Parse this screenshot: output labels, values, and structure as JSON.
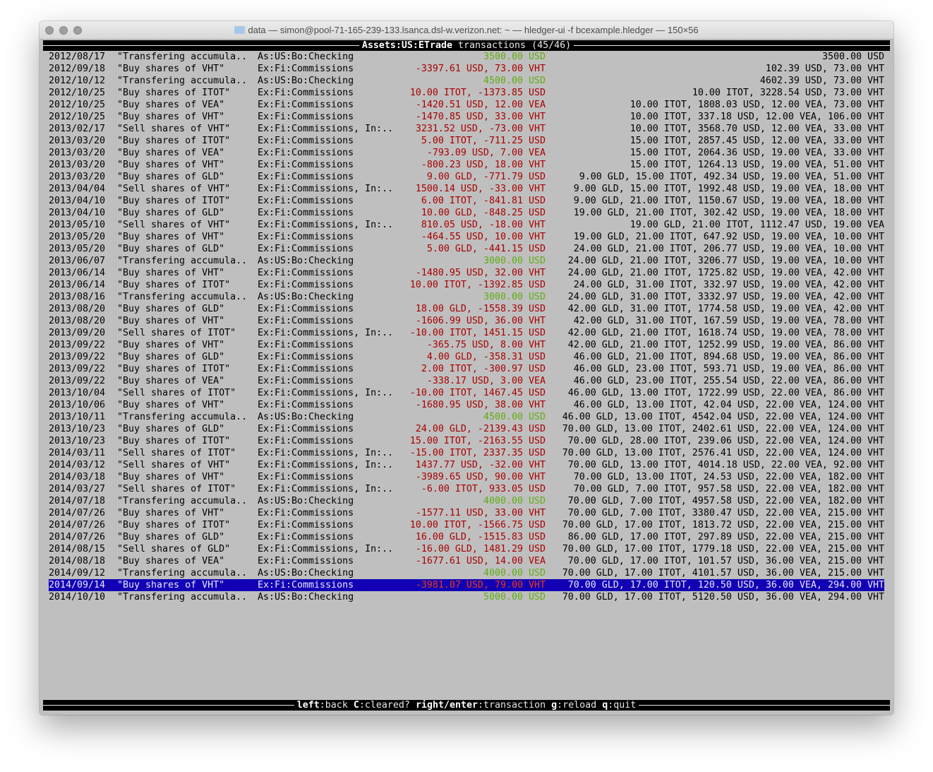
{
  "window": {
    "title": "data — simon@pool-71-165-239-133.lsanca.dsl-w.verizon.net: ~ — hledger-ui -f bcexample.hledger — 150×56"
  },
  "header": {
    "account": "Assets:US:ETrade",
    "label": "transactions",
    "count": "(45/46)"
  },
  "colors": {
    "negative": "#a80000",
    "positive": "#5fae12",
    "selection": "#1200b4"
  },
  "selected_index": 44,
  "rows": [
    {
      "date": "2012/08/17",
      "desc": "\"Transfering accumula..",
      "acct": "As:US:Bo:Checking",
      "change": "3500.00 USD",
      "pos": true,
      "balance": "3500.00 USD"
    },
    {
      "date": "2012/09/18",
      "desc": "\"Buy shares of VHT\"",
      "acct": "Ex:Fi:Commissions",
      "change": "-3397.61 USD, 73.00 VHT",
      "balance": "102.39 USD, 73.00 VHT"
    },
    {
      "date": "2012/10/12",
      "desc": "\"Transfering accumula..",
      "acct": "As:US:Bo:Checking",
      "change": "4500.00 USD",
      "pos": true,
      "balance": "4602.39 USD, 73.00 VHT"
    },
    {
      "date": "2012/10/25",
      "desc": "\"Buy shares of ITOT\"",
      "acct": "Ex:Fi:Commissions",
      "change": "10.00 ITOT, -1373.85 USD",
      "balance": "10.00 ITOT, 3228.54 USD, 73.00 VHT"
    },
    {
      "date": "2012/10/25",
      "desc": "\"Buy shares of VEA\"",
      "acct": "Ex:Fi:Commissions",
      "change": "-1420.51 USD, 12.00 VEA",
      "balance": "10.00 ITOT, 1808.03 USD, 12.00 VEA, 73.00 VHT"
    },
    {
      "date": "2012/10/25",
      "desc": "\"Buy shares of VHT\"",
      "acct": "Ex:Fi:Commissions",
      "change": "-1470.85 USD, 33.00 VHT",
      "balance": "10.00 ITOT, 337.18 USD, 12.00 VEA, 106.00 VHT"
    },
    {
      "date": "2013/02/17",
      "desc": "\"Sell shares of VHT\"",
      "acct": "Ex:Fi:Commissions, In:..",
      "change": "3231.52 USD, -73.00 VHT",
      "balance": "10.00 ITOT, 3568.70 USD, 12.00 VEA, 33.00 VHT"
    },
    {
      "date": "2013/03/20",
      "desc": "\"Buy shares of ITOT\"",
      "acct": "Ex:Fi:Commissions",
      "change": "5.00 ITOT, -711.25 USD",
      "balance": "15.00 ITOT, 2857.45 USD, 12.00 VEA, 33.00 VHT"
    },
    {
      "date": "2013/03/20",
      "desc": "\"Buy shares of VEA\"",
      "acct": "Ex:Fi:Commissions",
      "change": "-793.09 USD, 7.00 VEA",
      "balance": "15.00 ITOT, 2064.36 USD, 19.00 VEA, 33.00 VHT"
    },
    {
      "date": "2013/03/20",
      "desc": "\"Buy shares of VHT\"",
      "acct": "Ex:Fi:Commissions",
      "change": "-800.23 USD, 18.00 VHT",
      "balance": "15.00 ITOT, 1264.13 USD, 19.00 VEA, 51.00 VHT"
    },
    {
      "date": "2013/03/20",
      "desc": "\"Buy shares of GLD\"",
      "acct": "Ex:Fi:Commissions",
      "change": "9.00 GLD, -771.79 USD",
      "balance": "9.00 GLD, 15.00 ITOT, 492.34 USD, 19.00 VEA, 51.00 VHT"
    },
    {
      "date": "2013/04/04",
      "desc": "\"Sell shares of VHT\"",
      "acct": "Ex:Fi:Commissions, In:..",
      "change": "1500.14 USD, -33.00 VHT",
      "balance": "9.00 GLD, 15.00 ITOT, 1992.48 USD, 19.00 VEA, 18.00 VHT"
    },
    {
      "date": "2013/04/10",
      "desc": "\"Buy shares of ITOT\"",
      "acct": "Ex:Fi:Commissions",
      "change": "6.00 ITOT, -841.81 USD",
      "balance": "9.00 GLD, 21.00 ITOT, 1150.67 USD, 19.00 VEA, 18.00 VHT"
    },
    {
      "date": "2013/04/10",
      "desc": "\"Buy shares of GLD\"",
      "acct": "Ex:Fi:Commissions",
      "change": "10.00 GLD, -848.25 USD",
      "balance": "19.00 GLD, 21.00 ITOT, 302.42 USD, 19.00 VEA, 18.00 VHT"
    },
    {
      "date": "2013/05/10",
      "desc": "\"Sell shares of VHT\"",
      "acct": "Ex:Fi:Commissions, In:..",
      "change": "810.05 USD, -18.00 VHT",
      "balance": "19.00 GLD, 21.00 ITOT, 1112.47 USD, 19.00 VEA"
    },
    {
      "date": "2013/05/20",
      "desc": "\"Buy shares of VHT\"",
      "acct": "Ex:Fi:Commissions",
      "change": "-464.55 USD, 10.00 VHT",
      "balance": "19.00 GLD, 21.00 ITOT, 647.92 USD, 19.00 VEA, 10.00 VHT"
    },
    {
      "date": "2013/05/20",
      "desc": "\"Buy shares of GLD\"",
      "acct": "Ex:Fi:Commissions",
      "change": "5.00 GLD, -441.15 USD",
      "balance": "24.00 GLD, 21.00 ITOT, 206.77 USD, 19.00 VEA, 10.00 VHT"
    },
    {
      "date": "2013/06/07",
      "desc": "\"Transfering accumula..",
      "acct": "As:US:Bo:Checking",
      "change": "3000.00 USD",
      "pos": true,
      "balance": "24.00 GLD, 21.00 ITOT, 3206.77 USD, 19.00 VEA, 10.00 VHT"
    },
    {
      "date": "2013/06/14",
      "desc": "\"Buy shares of VHT\"",
      "acct": "Ex:Fi:Commissions",
      "change": "-1480.95 USD, 32.00 VHT",
      "balance": "24.00 GLD, 21.00 ITOT, 1725.82 USD, 19.00 VEA, 42.00 VHT"
    },
    {
      "date": "2013/06/14",
      "desc": "\"Buy shares of ITOT\"",
      "acct": "Ex:Fi:Commissions",
      "change": "10.00 ITOT, -1392.85 USD",
      "balance": "24.00 GLD, 31.00 ITOT, 332.97 USD, 19.00 VEA, 42.00 VHT"
    },
    {
      "date": "2013/08/16",
      "desc": "\"Transfering accumula..",
      "acct": "As:US:Bo:Checking",
      "change": "3000.00 USD",
      "pos": true,
      "balance": "24.00 GLD, 31.00 ITOT, 3332.97 USD, 19.00 VEA, 42.00 VHT"
    },
    {
      "date": "2013/08/20",
      "desc": "\"Buy shares of GLD\"",
      "acct": "Ex:Fi:Commissions",
      "change": "18.00 GLD, -1558.39 USD",
      "balance": "42.00 GLD, 31.00 ITOT, 1774.58 USD, 19.00 VEA, 42.00 VHT"
    },
    {
      "date": "2013/08/20",
      "desc": "\"Buy shares of VHT\"",
      "acct": "Ex:Fi:Commissions",
      "change": "-1606.99 USD, 36.00 VHT",
      "balance": "42.00 GLD, 31.00 ITOT, 167.59 USD, 19.00 VEA, 78.00 VHT"
    },
    {
      "date": "2013/09/20",
      "desc": "\"Sell shares of ITOT\"",
      "acct": "Ex:Fi:Commissions, In:..",
      "change": "-10.00 ITOT, 1451.15 USD",
      "balance": "42.00 GLD, 21.00 ITOT, 1618.74 USD, 19.00 VEA, 78.00 VHT"
    },
    {
      "date": "2013/09/22",
      "desc": "\"Buy shares of VHT\"",
      "acct": "Ex:Fi:Commissions",
      "change": "-365.75 USD, 8.00 VHT",
      "balance": "42.00 GLD, 21.00 ITOT, 1252.99 USD, 19.00 VEA, 86.00 VHT"
    },
    {
      "date": "2013/09/22",
      "desc": "\"Buy shares of GLD\"",
      "acct": "Ex:Fi:Commissions",
      "change": "4.00 GLD, -358.31 USD",
      "balance": "46.00 GLD, 21.00 ITOT, 894.68 USD, 19.00 VEA, 86.00 VHT"
    },
    {
      "date": "2013/09/22",
      "desc": "\"Buy shares of ITOT\"",
      "acct": "Ex:Fi:Commissions",
      "change": "2.00 ITOT, -300.97 USD",
      "balance": "46.00 GLD, 23.00 ITOT, 593.71 USD, 19.00 VEA, 86.00 VHT"
    },
    {
      "date": "2013/09/22",
      "desc": "\"Buy shares of VEA\"",
      "acct": "Ex:Fi:Commissions",
      "change": "-338.17 USD, 3.00 VEA",
      "balance": "46.00 GLD, 23.00 ITOT, 255.54 USD, 22.00 VEA, 86.00 VHT"
    },
    {
      "date": "2013/10/04",
      "desc": "\"Sell shares of ITOT\"",
      "acct": "Ex:Fi:Commissions, In:..",
      "change": "-10.00 ITOT, 1467.45 USD",
      "balance": "46.00 GLD, 13.00 ITOT, 1722.99 USD, 22.00 VEA, 86.00 VHT"
    },
    {
      "date": "2013/10/06",
      "desc": "\"Buy shares of VHT\"",
      "acct": "Ex:Fi:Commissions",
      "change": "-1680.95 USD, 38.00 VHT",
      "balance": "46.00 GLD, 13.00 ITOT, 42.04 USD, 22.00 VEA, 124.00 VHT"
    },
    {
      "date": "2013/10/11",
      "desc": "\"Transfering accumula..",
      "acct": "As:US:Bo:Checking",
      "change": "4500.00 USD",
      "pos": true,
      "balance": "46.00 GLD, 13.00 ITOT, 4542.04 USD, 22.00 VEA, 124.00 VHT"
    },
    {
      "date": "2013/10/23",
      "desc": "\"Buy shares of GLD\"",
      "acct": "Ex:Fi:Commissions",
      "change": "24.00 GLD, -2139.43 USD",
      "balance": "70.00 GLD, 13.00 ITOT, 2402.61 USD, 22.00 VEA, 124.00 VHT"
    },
    {
      "date": "2013/10/23",
      "desc": "\"Buy shares of ITOT\"",
      "acct": "Ex:Fi:Commissions",
      "change": "15.00 ITOT, -2163.55 USD",
      "balance": "70.00 GLD, 28.00 ITOT, 239.06 USD, 22.00 VEA, 124.00 VHT"
    },
    {
      "date": "2014/03/11",
      "desc": "\"Sell shares of ITOT\"",
      "acct": "Ex:Fi:Commissions, In:..",
      "change": "-15.00 ITOT, 2337.35 USD",
      "balance": "70.00 GLD, 13.00 ITOT, 2576.41 USD, 22.00 VEA, 124.00 VHT"
    },
    {
      "date": "2014/03/12",
      "desc": "\"Sell shares of VHT\"",
      "acct": "Ex:Fi:Commissions, In:..",
      "change": "1437.77 USD, -32.00 VHT",
      "balance": "70.00 GLD, 13.00 ITOT, 4014.18 USD, 22.00 VEA, 92.00 VHT"
    },
    {
      "date": "2014/03/18",
      "desc": "\"Buy shares of VHT\"",
      "acct": "Ex:Fi:Commissions",
      "change": "-3989.65 USD, 90.00 VHT",
      "balance": "70.00 GLD, 13.00 ITOT, 24.53 USD, 22.00 VEA, 182.00 VHT"
    },
    {
      "date": "2014/03/27",
      "desc": "\"Sell shares of ITOT\"",
      "acct": "Ex:Fi:Commissions, In:..",
      "change": "-6.00 ITOT, 933.05 USD",
      "balance": "70.00 GLD, 7.00 ITOT, 957.58 USD, 22.00 VEA, 182.00 VHT"
    },
    {
      "date": "2014/07/18",
      "desc": "\"Transfering accumula..",
      "acct": "As:US:Bo:Checking",
      "change": "4000.00 USD",
      "pos": true,
      "balance": "70.00 GLD, 7.00 ITOT, 4957.58 USD, 22.00 VEA, 182.00 VHT"
    },
    {
      "date": "2014/07/26",
      "desc": "\"Buy shares of VHT\"",
      "acct": "Ex:Fi:Commissions",
      "change": "-1577.11 USD, 33.00 VHT",
      "balance": "70.00 GLD, 7.00 ITOT, 3380.47 USD, 22.00 VEA, 215.00 VHT"
    },
    {
      "date": "2014/07/26",
      "desc": "\"Buy shares of ITOT\"",
      "acct": "Ex:Fi:Commissions",
      "change": "10.00 ITOT, -1566.75 USD",
      "balance": "70.00 GLD, 17.00 ITOT, 1813.72 USD, 22.00 VEA, 215.00 VHT"
    },
    {
      "date": "2014/07/26",
      "desc": "\"Buy shares of GLD\"",
      "acct": "Ex:Fi:Commissions",
      "change": "16.00 GLD, -1515.83 USD",
      "balance": "86.00 GLD, 17.00 ITOT, 297.89 USD, 22.00 VEA, 215.00 VHT"
    },
    {
      "date": "2014/08/15",
      "desc": "\"Sell shares of GLD\"",
      "acct": "Ex:Fi:Commissions, In:..",
      "change": "-16.00 GLD, 1481.29 USD",
      "balance": "70.00 GLD, 17.00 ITOT, 1779.18 USD, 22.00 VEA, 215.00 VHT"
    },
    {
      "date": "2014/08/18",
      "desc": "\"Buy shares of VEA\"",
      "acct": "Ex:Fi:Commissions",
      "change": "-1677.61 USD, 14.00 VEA",
      "balance": "70.00 GLD, 17.00 ITOT, 101.57 USD, 36.00 VEA, 215.00 VHT"
    },
    {
      "date": "2014/09/12",
      "desc": "\"Transfering accumula..",
      "acct": "As:US:Bo:Checking",
      "change": "4000.00 USD",
      "pos": true,
      "balance": "70.00 GLD, 17.00 ITOT, 4101.57 USD, 36.00 VEA, 215.00 VHT"
    },
    {
      "date": "2014/09/14",
      "desc": "\"Buy shares of VHT\"",
      "acct": "Ex:Fi:Commissions",
      "change": "-3981.07 USD, 79.00 VHT",
      "balance": "70.00 GLD, 17.00 ITOT, 120.50 USD, 36.00 VEA, 294.00 VHT"
    },
    {
      "date": "2014/10/10",
      "desc": "\"Transfering accumula..",
      "acct": "As:US:Bo:Checking",
      "change": "5000.00 USD",
      "pos": true,
      "balance": "70.00 GLD, 17.00 ITOT, 5120.50 USD, 36.00 VEA, 294.00 VHT"
    }
  ],
  "footer": {
    "keys": [
      {
        "key": "left",
        "action": "back"
      },
      {
        "key": "C",
        "action": "cleared?"
      },
      {
        "key": "right/enter",
        "action": "transaction"
      },
      {
        "key": "g",
        "action": "reload"
      },
      {
        "key": "q",
        "action": "quit"
      }
    ]
  }
}
